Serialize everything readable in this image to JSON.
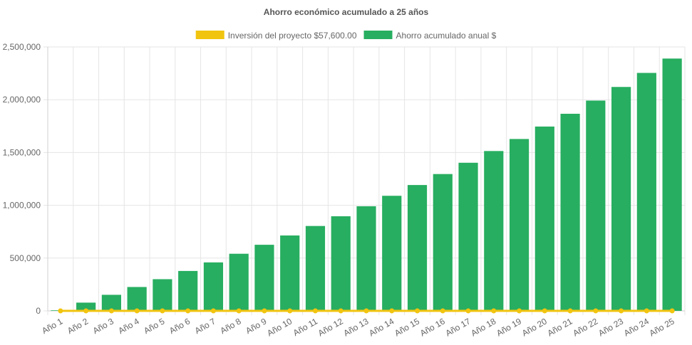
{
  "chart_data": {
    "type": "bar",
    "title": "Ahorro económico acumulado a 25 años",
    "categories": [
      "Año 1",
      "Año 2",
      "Año 3",
      "Año 4",
      "Año 5",
      "Año 6",
      "Año 7",
      "Año 8",
      "Año 9",
      "Año 10",
      "Año 11",
      "Año 12",
      "Año 13",
      "Año 14",
      "Año 15",
      "Año 16",
      "Año 17",
      "Año 18",
      "Año 19",
      "Año 20",
      "Año 21",
      "Año 22",
      "Año 23",
      "Año 24",
      "Año 25"
    ],
    "series": [
      {
        "name": "Inversión del proyecto $57,600.00",
        "type": "line",
        "color": "#f1c40f",
        "values": [
          0,
          0,
          0,
          0,
          0,
          0,
          0,
          0,
          0,
          0,
          0,
          0,
          0,
          0,
          0,
          0,
          0,
          0,
          0,
          0,
          0,
          0,
          0,
          0,
          0
        ]
      },
      {
        "name": "Ahorro acumulado anual $",
        "type": "bar",
        "color": "#27ae60",
        "values": [
          5000,
          78000,
          152000,
          226000,
          300000,
          378000,
          459000,
          541000,
          626000,
          714000,
          804000,
          896000,
          991000,
          1090000,
          1192000,
          1296000,
          1403000,
          1514000,
          1628000,
          1746000,
          1867000,
          1992000,
          2121000,
          2254000,
          2390000
        ]
      }
    ],
    "yticks": [
      "0",
      "500,000",
      "1,000,000",
      "1,500,000",
      "2,000,000",
      "2,500,000"
    ],
    "ylim": [
      0,
      2500000
    ],
    "grid": true,
    "legend_position": "top"
  }
}
